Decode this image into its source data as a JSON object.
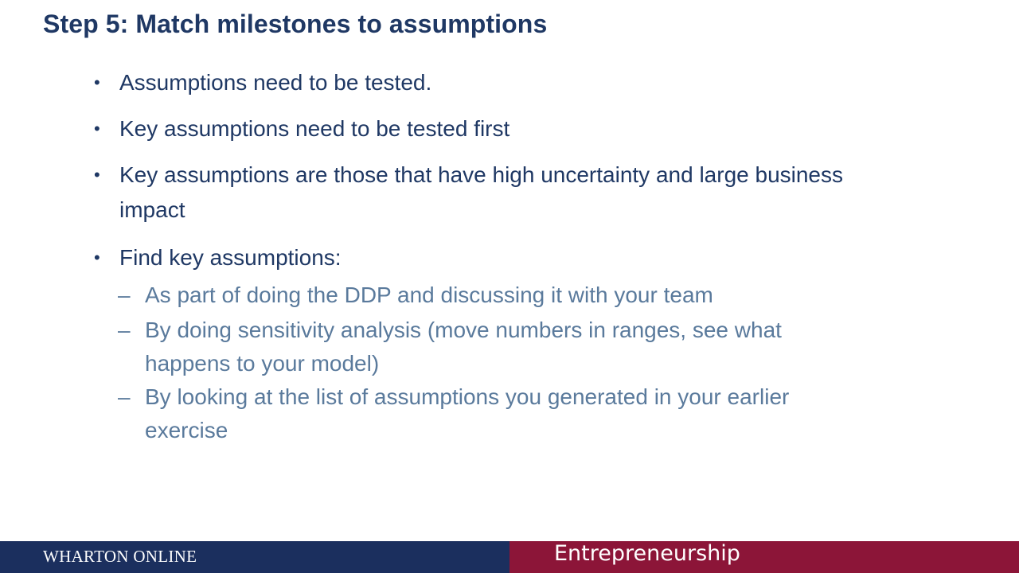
{
  "title": "Step 5: Match milestones to assumptions",
  "bullets": [
    {
      "marker": "•",
      "text": "Assumptions need to be tested."
    },
    {
      "marker": "•",
      "text": "Key assumptions need to be tested first"
    },
    {
      "marker": "•",
      "text": "Key assumptions are those that have high uncertainty and large business impact"
    },
    {
      "marker": "•",
      "text": "Find key assumptions:",
      "subitems": [
        {
          "marker": "–",
          "text": "As part of doing the DDP and discussing it with your team"
        },
        {
          "marker": "–",
          "text": "By doing sensitivity analysis (move numbers in ranges, see what happens to your model)"
        },
        {
          "marker": "–",
          "text": "By looking at the list of assumptions you generated in your earlier exercise"
        }
      ]
    }
  ],
  "footer": {
    "left_text": "WHARTON ONLINE",
    "right_text": "Entrepreneurship",
    "left_color": "#1b2f5e",
    "right_color": "#8c1538"
  }
}
